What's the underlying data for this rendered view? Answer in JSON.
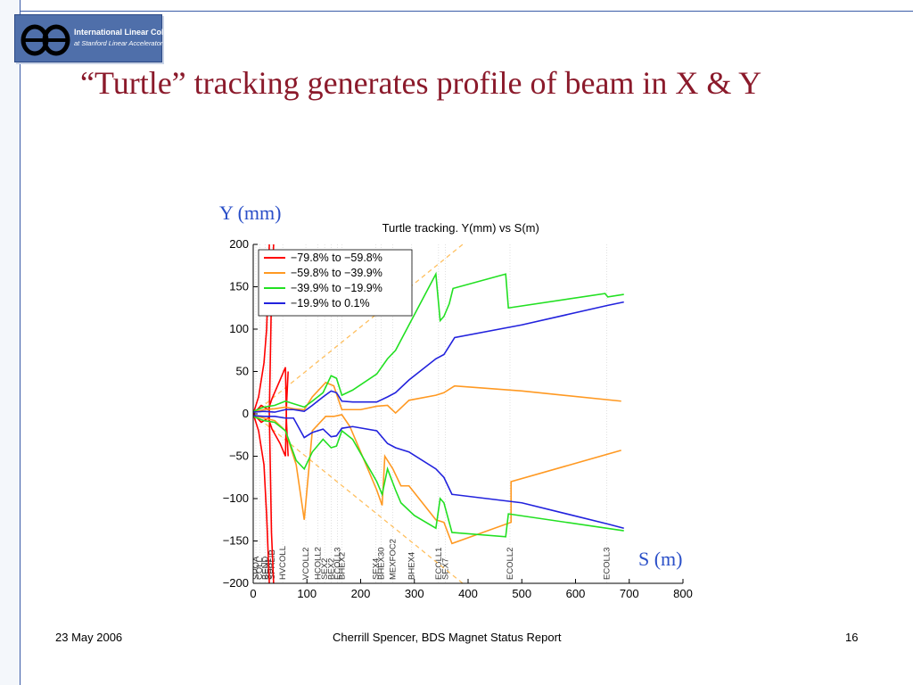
{
  "logo": {
    "line1": "International Linear Collider",
    "line2": "at Stanford Linear Accelerator Center"
  },
  "slide": {
    "title": "“Turtle” tracking generates profile of beam in X & Y"
  },
  "footer": {
    "date": "23 May 2006",
    "center": "Cherrill Spencer, BDS Magnet Status Report",
    "page": "16"
  },
  "colors": {
    "title": "#8b1a2b",
    "frame": "#3a5ba8",
    "axis_label": "#2a4fc8"
  },
  "chart_data": {
    "type": "line",
    "title": "Turtle tracking.  Y(mm) vs S(m)",
    "ylabel": "Y (mm)",
    "xlabel": "S (m)",
    "xlim": [
      0,
      800
    ],
    "ylim": [
      -200,
      200
    ],
    "xticks": [
      0,
      100,
      200,
      300,
      400,
      500,
      600,
      700,
      800
    ],
    "yticks": [
      -200,
      -150,
      -100,
      -50,
      0,
      50,
      100,
      150,
      200
    ],
    "grid": false,
    "legend_position": "top-left",
    "series": [
      {
        "name": "−79.8% to −59.8%",
        "color": "#ff0000",
        "lines": [
          [
            [
              0,
              0
            ],
            [
              10,
              20
            ],
            [
              20,
              60
            ],
            [
              25,
              100
            ],
            [
              30,
              200
            ]
          ],
          [
            [
              0,
              0
            ],
            [
              10,
              -20
            ],
            [
              20,
              -60
            ],
            [
              25,
              -120
            ],
            [
              30,
              -200
            ]
          ],
          [
            [
              0,
              0
            ],
            [
              15,
              10
            ],
            [
              28,
              5
            ],
            [
              35,
              18
            ],
            [
              50,
              40
            ],
            [
              60,
              55
            ],
            [
              62,
              -10
            ],
            [
              65,
              -50
            ]
          ],
          [
            [
              0,
              0
            ],
            [
              15,
              -10
            ],
            [
              28,
              -5
            ],
            [
              35,
              -18
            ],
            [
              50,
              -35
            ],
            [
              60,
              -50
            ],
            [
              62,
              10
            ],
            [
              65,
              50
            ]
          ],
          [
            [
              30,
              0
            ],
            [
              34,
              140
            ],
            [
              38,
              200
            ]
          ],
          [
            [
              30,
              0
            ],
            [
              34,
              -140
            ],
            [
              38,
              -200
            ]
          ]
        ]
      },
      {
        "name": "−59.8% to −39.9%",
        "color": "#ff9922",
        "lines": [
          [
            [
              0,
              2
            ],
            [
              20,
              5
            ],
            [
              40,
              6
            ],
            [
              60,
              8
            ],
            [
              75,
              6
            ],
            [
              95,
              5
            ],
            [
              110,
              20
            ],
            [
              135,
              37
            ],
            [
              150,
              33
            ],
            [
              165,
              5
            ],
            [
              200,
              5
            ],
            [
              230,
              9
            ],
            [
              250,
              10
            ],
            [
              265,
              1
            ],
            [
              290,
              16
            ],
            [
              340,
              22
            ],
            [
              355,
              25
            ],
            [
              375,
              33
            ],
            [
              500,
              27
            ],
            [
              685,
              15
            ]
          ],
          [
            [
              0,
              -2
            ],
            [
              20,
              -5
            ],
            [
              40,
              -8
            ],
            [
              60,
              -20
            ],
            [
              80,
              -60
            ],
            [
              95,
              -125
            ],
            [
              110,
              -20
            ],
            [
              135,
              -3
            ],
            [
              150,
              -3
            ],
            [
              165,
              -1
            ],
            [
              180,
              -15
            ],
            [
              230,
              -90
            ],
            [
              240,
              -108
            ],
            [
              245,
              -50
            ],
            [
              260,
              -65
            ],
            [
              275,
              -85
            ],
            [
              290,
              -85
            ],
            [
              340,
              -125
            ],
            [
              355,
              -128
            ],
            [
              370,
              -153
            ],
            [
              480,
              -128
            ],
            [
              480,
              -80
            ],
            [
              685,
              -43
            ]
          ]
        ]
      },
      {
        "name": "−39.9% to −19.9%",
        "color": "#22e022",
        "lines": [
          [
            [
              0,
              3
            ],
            [
              20,
              8
            ],
            [
              40,
              10
            ],
            [
              60,
              15
            ],
            [
              75,
              12
            ],
            [
              95,
              8
            ],
            [
              110,
              15
            ],
            [
              130,
              25
            ],
            [
              145,
              45
            ],
            [
              155,
              42
            ],
            [
              165,
              22
            ],
            [
              185,
              28
            ],
            [
              230,
              47
            ],
            [
              250,
              65
            ],
            [
              265,
              75
            ],
            [
              340,
              165
            ],
            [
              348,
              110
            ],
            [
              355,
              115
            ],
            [
              365,
              130
            ],
            [
              372,
              148
            ],
            [
              470,
              165
            ],
            [
              475,
              125
            ],
            [
              655,
              142
            ],
            [
              660,
              138
            ],
            [
              690,
              141
            ]
          ],
          [
            [
              0,
              -3
            ],
            [
              20,
              -8
            ],
            [
              40,
              -10
            ],
            [
              60,
              -20
            ],
            [
              80,
              -55
            ],
            [
              95,
              -65
            ],
            [
              110,
              -45
            ],
            [
              130,
              -30
            ],
            [
              145,
              -40
            ],
            [
              155,
              -38
            ],
            [
              165,
              -20
            ],
            [
              185,
              -30
            ],
            [
              230,
              -80
            ],
            [
              240,
              -95
            ],
            [
              250,
              -65
            ],
            [
              265,
              -90
            ],
            [
              275,
              -105
            ],
            [
              300,
              -120
            ],
            [
              340,
              -135
            ],
            [
              348,
              -100
            ],
            [
              355,
              -105
            ],
            [
              370,
              -140
            ],
            [
              470,
              -145
            ],
            [
              475,
              -118
            ],
            [
              690,
              -138
            ]
          ]
        ]
      },
      {
        "name": "−19.9% to 0.1%",
        "color": "#2222dd",
        "lines": [
          [
            [
              0,
              2
            ],
            [
              20,
              3
            ],
            [
              40,
              2
            ],
            [
              60,
              5
            ],
            [
              75,
              5
            ],
            [
              95,
              3
            ],
            [
              110,
              10
            ],
            [
              130,
              20
            ],
            [
              145,
              27
            ],
            [
              155,
              25
            ],
            [
              165,
              15
            ],
            [
              185,
              14
            ],
            [
              230,
              14
            ],
            [
              250,
              20
            ],
            [
              265,
              25
            ],
            [
              290,
              40
            ],
            [
              340,
              65
            ],
            [
              355,
              70
            ],
            [
              375,
              90
            ],
            [
              500,
              105
            ],
            [
              660,
              128
            ],
            [
              690,
              132
            ]
          ],
          [
            [
              0,
              -2
            ],
            [
              20,
              -3
            ],
            [
              40,
              -3
            ],
            [
              60,
              -5
            ],
            [
              75,
              -5
            ],
            [
              95,
              -28
            ],
            [
              110,
              -22
            ],
            [
              130,
              -18
            ],
            [
              145,
              -27
            ],
            [
              155,
              -26
            ],
            [
              165,
              -17
            ],
            [
              185,
              -15
            ],
            [
              230,
              -20
            ],
            [
              250,
              -35
            ],
            [
              265,
              -40
            ],
            [
              290,
              -45
            ],
            [
              340,
              -65
            ],
            [
              355,
              -75
            ],
            [
              370,
              -95
            ],
            [
              500,
              -105
            ],
            [
              660,
              -130
            ],
            [
              690,
              -135
            ]
          ]
        ]
      }
    ],
    "envelope": {
      "color": "#ffc060",
      "lines": [
        [
          [
            0,
            0
          ],
          [
            390,
            200
          ]
        ],
        [
          [
            0,
            0
          ],
          [
            390,
            -200
          ]
        ]
      ]
    },
    "element_labels": [
      {
        "s": 5,
        "label": "SPOA"
      },
      {
        "s": 12,
        "label": "COLL"
      },
      {
        "s": 22,
        "label": "BEND"
      },
      {
        "s": 28,
        "label": "SEX1"
      },
      {
        "s": 35,
        "label": "SPRLIB"
      },
      {
        "s": 55,
        "label": "HVCOLL"
      },
      {
        "s": 98,
        "label": "VCOLL2"
      },
      {
        "s": 120,
        "label": "HCOLL2"
      },
      {
        "s": 133,
        "label": "SEX2"
      },
      {
        "s": 145,
        "label": "BEX2"
      },
      {
        "s": 157,
        "label": "ECOLL3"
      },
      {
        "s": 165,
        "label": "BHEX2"
      },
      {
        "s": 228,
        "label": "SEX4"
      },
      {
        "s": 238,
        "label": "BHEX30"
      },
      {
        "s": 260,
        "label": "MEXFOC2"
      },
      {
        "s": 295,
        "label": "BHEX4"
      },
      {
        "s": 345,
        "label": "ECOLL1"
      },
      {
        "s": 358,
        "label": "SEX7"
      },
      {
        "s": 478,
        "label": "ECOLL2"
      },
      {
        "s": 658,
        "label": "ECOLL3"
      }
    ]
  }
}
